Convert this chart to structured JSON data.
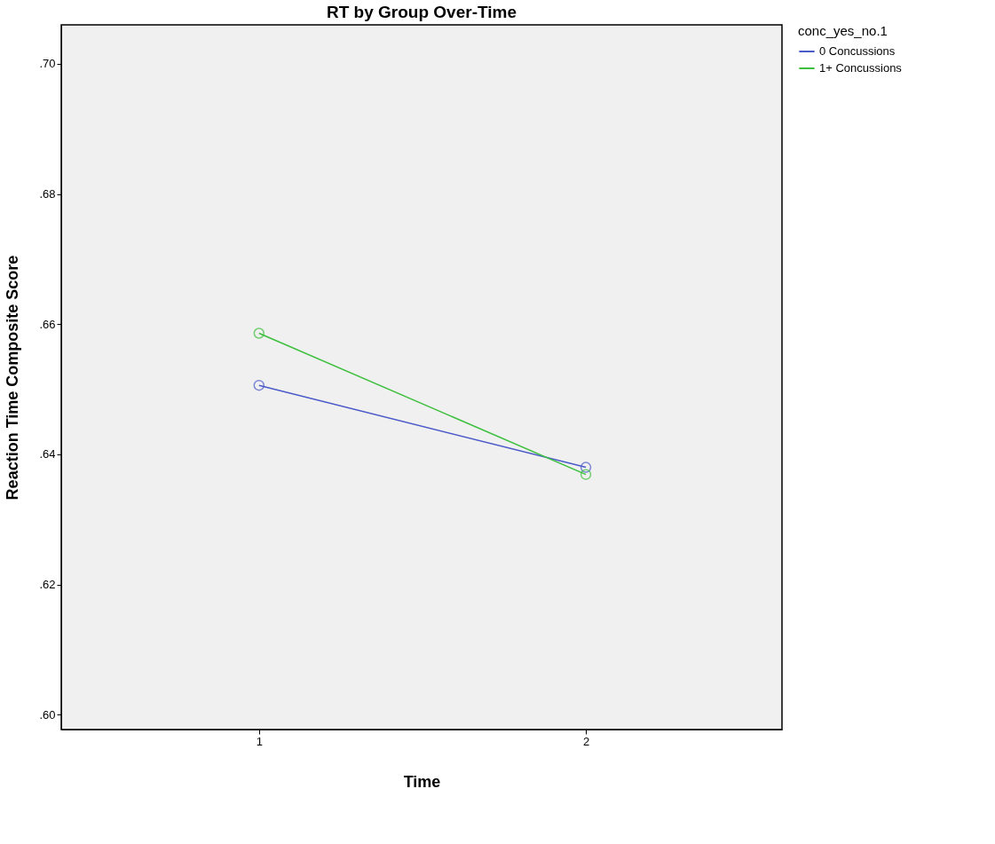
{
  "chart_data": {
    "type": "line",
    "title": "RT by Group Over-Time",
    "xlabel": "Time",
    "ylabel": "Reaction Time Composite Score",
    "legend_title": "conc_yes_no.1",
    "x": [
      1,
      2
    ],
    "series": [
      {
        "name": "0 Concussions",
        "color": "#4a5ac8",
        "values": [
          0.6506,
          0.638
        ]
      },
      {
        "name": "1+ Concussions",
        "color": "#3cbf3c",
        "values": [
          0.6586,
          0.6369
        ]
      }
    ],
    "xlim": [
      0.395,
      2.6
    ],
    "xticks": [
      1,
      2
    ],
    "ylim": [
      0.5977,
      0.706
    ],
    "yticks": [
      {
        "value": 0.6,
        "label": ".60"
      },
      {
        "value": 0.62,
        "label": ".62"
      },
      {
        "value": 0.64,
        "label": ".64"
      },
      {
        "value": 0.66,
        "label": ".66"
      },
      {
        "value": 0.68,
        "label": ".68"
      },
      {
        "value": 0.7,
        "label": ".70"
      }
    ],
    "marker": "circle",
    "line_style": "solid",
    "grid": false,
    "legend": "top right"
  }
}
